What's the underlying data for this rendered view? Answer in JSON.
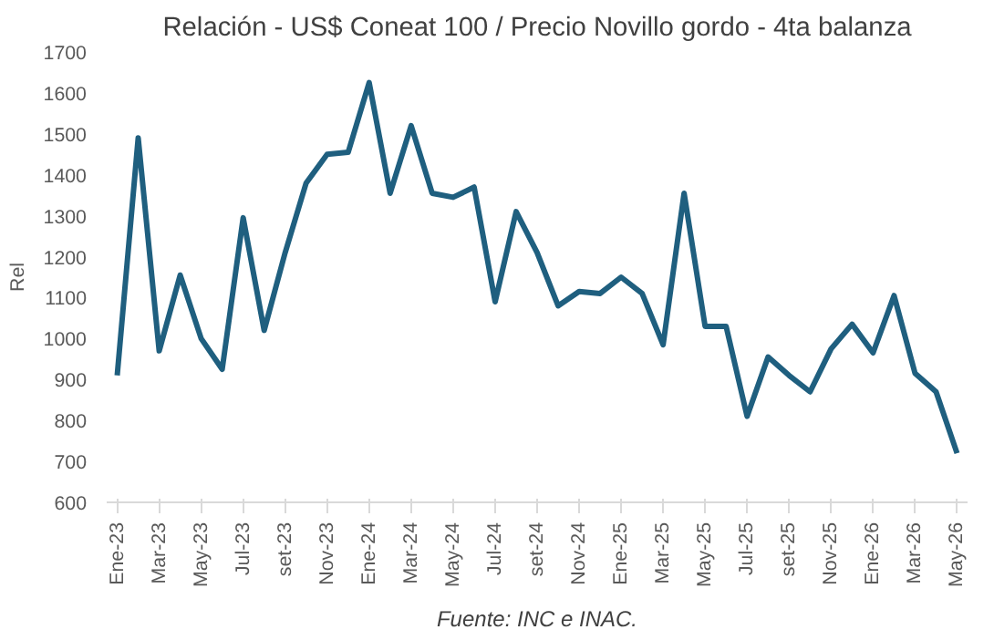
{
  "chart_data": {
    "type": "line",
    "title": "Relación - US$ Coneat 100 / Precio Novillo gordo - 4ta balanza",
    "ylabel": "Rel",
    "categories": [
      "Ene-23",
      null,
      "Mar-23",
      null,
      "May-23",
      null,
      "Jul-23",
      null,
      "set-23",
      null,
      "Nov-23",
      null,
      "Ene-24",
      null,
      "Mar-24",
      null,
      "May-24",
      null,
      "Jul-24",
      null,
      "set-24",
      null,
      "Nov-24",
      null,
      "Ene-25",
      null,
      "Mar-25",
      null,
      "May-25",
      null,
      "Jul-25",
      null,
      "set-25",
      null,
      "Nov-25",
      null,
      "Ene-26",
      null,
      "Mar-26",
      null,
      "May-26"
    ],
    "series": [
      {
        "color": "#1f5f7f",
        "values": [
          910,
          1490,
          970,
          1155,
          1000,
          925,
          1295,
          1020,
          1210,
          1380,
          1450,
          1455,
          1625,
          1355,
          1520,
          1355,
          1345,
          1370,
          1090,
          1310,
          1210,
          1080,
          1115,
          1110,
          1150,
          1110,
          985,
          1355,
          1030,
          1030,
          810,
          955,
          910,
          870,
          975,
          1035,
          965,
          1105,
          915,
          870,
          720
        ]
      }
    ],
    "ylim": [
      600,
      1700
    ],
    "yticks": [
      600,
      700,
      800,
      900,
      1000,
      1100,
      1200,
      1300,
      1400,
      1500,
      1600,
      1700
    ],
    "grid": false,
    "marker": "none",
    "line_style": "solid",
    "annotations": [
      "Fuente: INC e INAC."
    ]
  }
}
